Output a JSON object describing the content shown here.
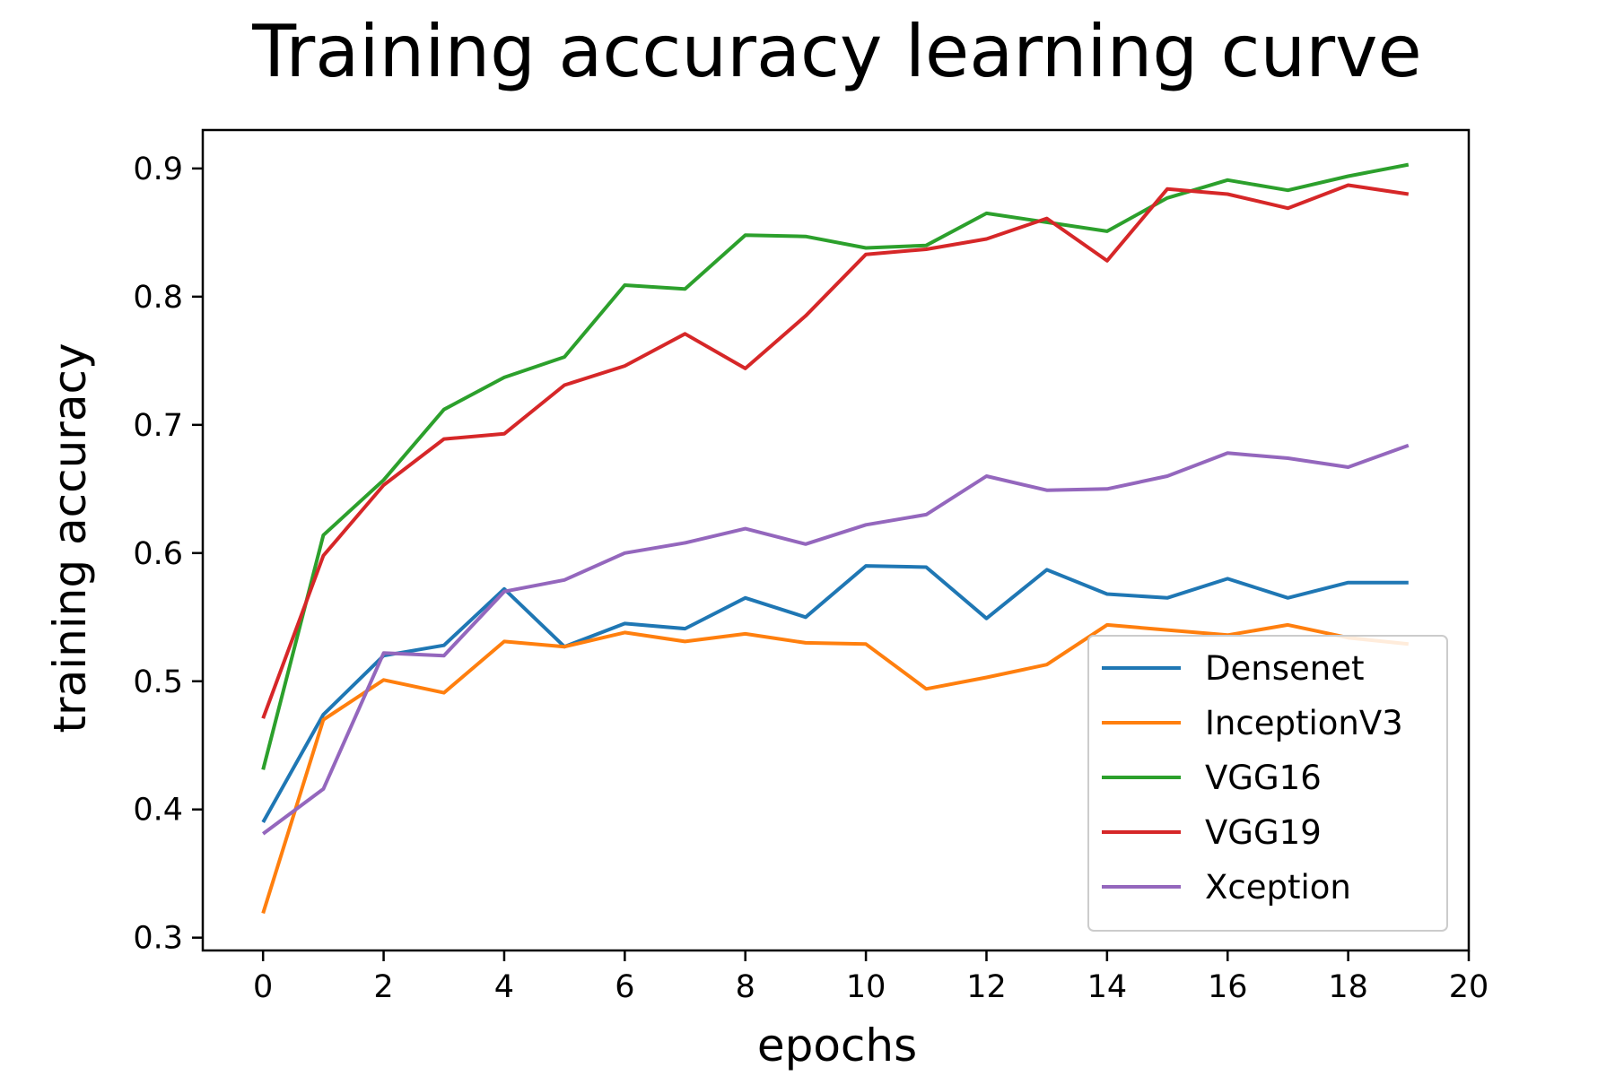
{
  "chart_data": {
    "type": "line",
    "title": "Training accuracy learning curve",
    "xlabel": "epochs",
    "ylabel": "training accuracy",
    "xlim": [
      -1,
      20
    ],
    "ylim": [
      0.29,
      0.93
    ],
    "xticks": [
      0,
      2,
      4,
      6,
      8,
      10,
      12,
      14,
      16,
      18,
      20
    ],
    "yticks": [
      0.3,
      0.4,
      0.5,
      0.6,
      0.7,
      0.8,
      0.9
    ],
    "grid": false,
    "legend_position": "lower-right",
    "x": [
      0,
      1,
      2,
      3,
      4,
      5,
      6,
      7,
      8,
      9,
      10,
      11,
      12,
      13,
      14,
      15,
      16,
      17,
      18,
      19
    ],
    "series": [
      {
        "name": "Densenet",
        "color": "#1f77b4",
        "values": [
          0.39,
          0.474,
          0.52,
          0.528,
          0.572,
          0.527,
          0.545,
          0.541,
          0.565,
          0.55,
          0.59,
          0.589,
          0.549,
          0.587,
          0.568,
          0.565,
          0.58,
          0.565,
          0.577,
          0.577
        ]
      },
      {
        "name": "InceptionV3",
        "color": "#ff7f0e",
        "values": [
          0.319,
          0.47,
          0.501,
          0.491,
          0.531,
          0.527,
          0.538,
          0.531,
          0.537,
          0.53,
          0.529,
          0.494,
          0.503,
          0.513,
          0.544,
          0.54,
          0.536,
          0.544,
          0.534,
          0.529
        ]
      },
      {
        "name": "VGG16",
        "color": "#2ca02c",
        "values": [
          0.431,
          0.614,
          0.657,
          0.712,
          0.737,
          0.753,
          0.809,
          0.806,
          0.848,
          0.847,
          0.838,
          0.84,
          0.865,
          0.858,
          0.851,
          0.877,
          0.891,
          0.883,
          0.894,
          0.903
        ]
      },
      {
        "name": "VGG19",
        "color": "#d62728",
        "values": [
          0.471,
          0.598,
          0.653,
          0.689,
          0.693,
          0.731,
          0.746,
          0.771,
          0.744,
          0.785,
          0.833,
          0.837,
          0.845,
          0.861,
          0.828,
          0.884,
          0.88,
          0.869,
          0.887,
          0.88
        ]
      },
      {
        "name": "Xception",
        "color": "#9467bd",
        "values": [
          0.381,
          0.416,
          0.522,
          0.52,
          0.57,
          0.579,
          0.6,
          0.608,
          0.619,
          0.607,
          0.622,
          0.63,
          0.66,
          0.649,
          0.65,
          0.66,
          0.678,
          0.674,
          0.667,
          0.684
        ]
      }
    ]
  }
}
